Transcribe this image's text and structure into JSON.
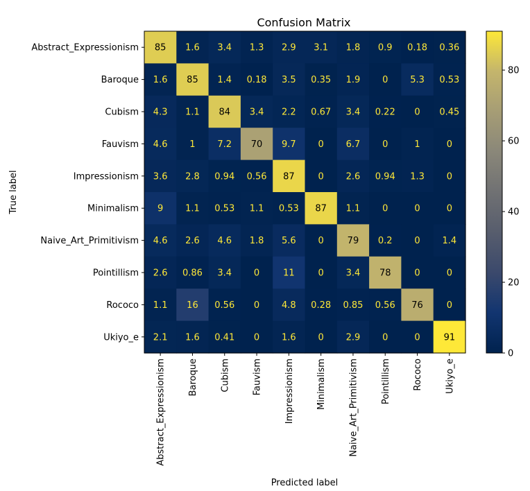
{
  "chart_data": {
    "type": "heatmap",
    "title": "Confusion Matrix",
    "xlabel": "Predicted label",
    "ylabel": "True label",
    "labels": [
      "Abstract_Expressionism",
      "Baroque",
      "Cubism",
      "Fauvism",
      "Impressionism",
      "Minimalism",
      "Naive_Art_Primitivism",
      "Pointillism",
      "Rococo",
      "Ukiyo_e"
    ],
    "values": [
      [
        "85",
        "1.6",
        "3.4",
        "1.3",
        "2.9",
        "3.1",
        "1.8",
        "0.9",
        "0.18",
        "0.36"
      ],
      [
        "1.6",
        "85",
        "1.4",
        "0.18",
        "3.5",
        "0.35",
        "1.9",
        "0",
        "5.3",
        "0.53"
      ],
      [
        "4.3",
        "1.1",
        "84",
        "3.4",
        "2.2",
        "0.67",
        "3.4",
        "0.22",
        "0",
        "0.45"
      ],
      [
        "4.6",
        "1",
        "7.2",
        "70",
        "9.7",
        "0",
        "6.7",
        "0",
        "1",
        "0"
      ],
      [
        "3.6",
        "2.8",
        "0.94",
        "0.56",
        "87",
        "0",
        "2.6",
        "0.94",
        "1.3",
        "0"
      ],
      [
        "9",
        "1.1",
        "0.53",
        "1.1",
        "0.53",
        "87",
        "1.1",
        "0",
        "0",
        "0"
      ],
      [
        "4.6",
        "2.6",
        "4.6",
        "1.8",
        "5.6",
        "0",
        "79",
        "0.2",
        "0",
        "1.4"
      ],
      [
        "2.6",
        "0.86",
        "3.4",
        "0",
        "11",
        "0",
        "3.4",
        "78",
        "0",
        "0"
      ],
      [
        "1.1",
        "16",
        "0.56",
        "0",
        "4.8",
        "0.28",
        "0.85",
        "0.56",
        "76",
        "0"
      ],
      [
        "2.1",
        "1.6",
        "0.41",
        "0",
        "1.6",
        "0",
        "2.9",
        "0",
        "0",
        "91"
      ]
    ],
    "colormap": "cividis",
    "color_range": [
      0,
      91
    ],
    "colorbar_ticks": [
      "0",
      "20",
      "40",
      "60",
      "80"
    ],
    "grid": false
  }
}
